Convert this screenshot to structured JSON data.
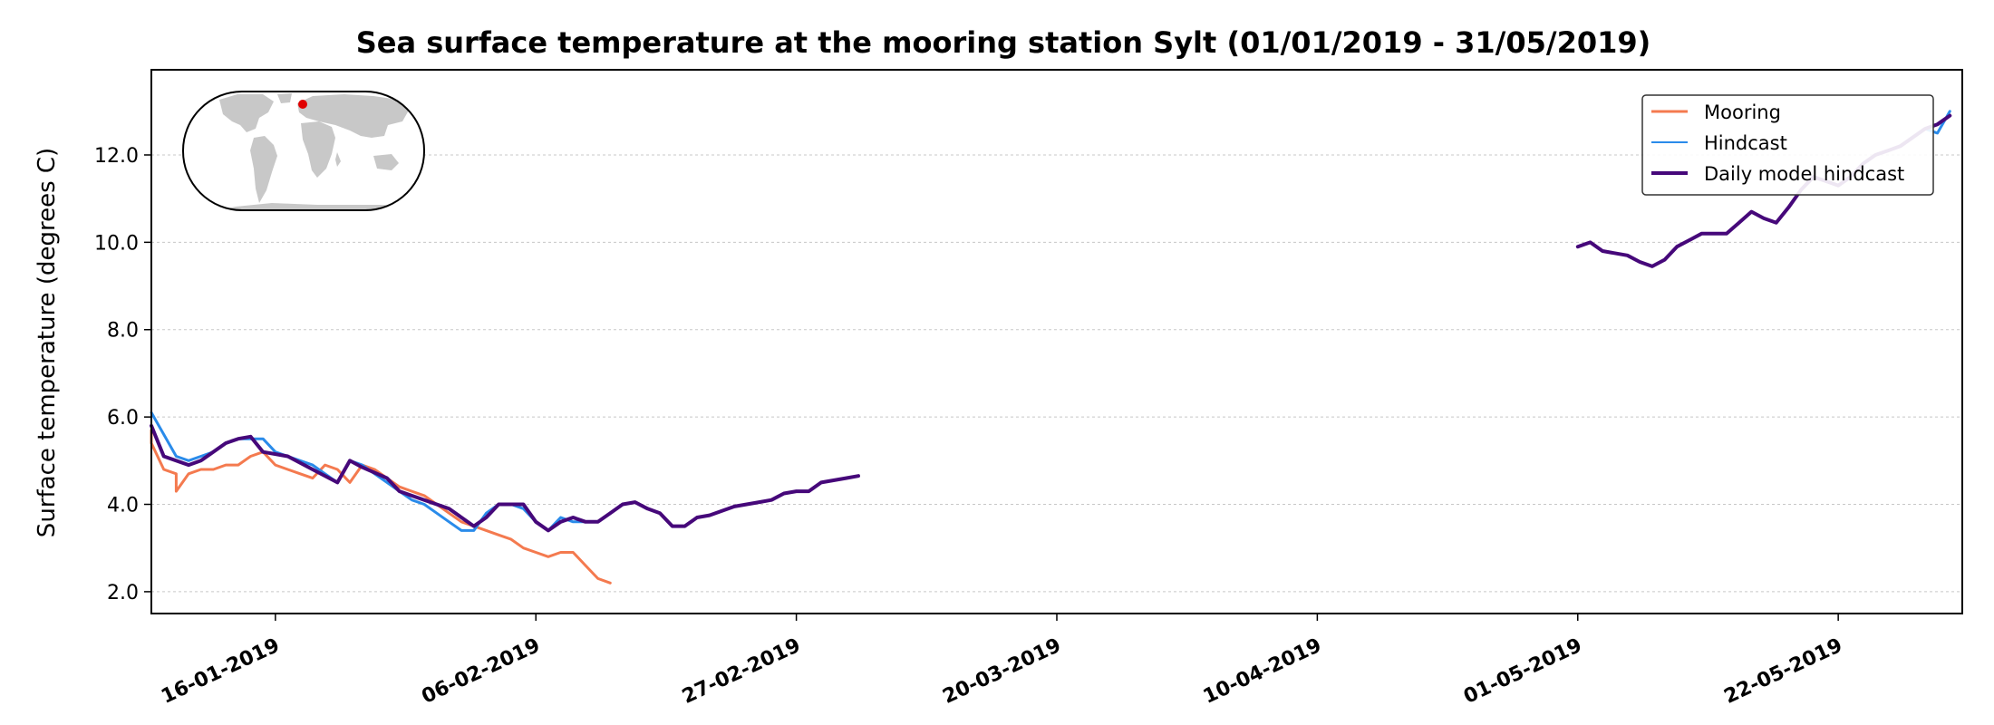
{
  "chart_data": {
    "type": "line",
    "title": "Sea surface temperature at the mooring station Sylt (01/01/2019 - 31/05/2019)",
    "xlabel": "",
    "ylabel": "Surface temperature (degrees C)",
    "xlim": [
      "2019-01-06",
      "2019-06-01"
    ],
    "ylim": [
      1.5,
      13.95
    ],
    "y_ticks": [
      2.0,
      4.0,
      6.0,
      8.0,
      10.0,
      12.0
    ],
    "y_tick_labels": [
      "2.0",
      "4.0",
      "6.0",
      "8.0",
      "10.0",
      "12.0"
    ],
    "x_ticks": [
      "2019-01-16",
      "2019-02-06",
      "2019-02-27",
      "2019-03-20",
      "2019-04-10",
      "2019-05-01",
      "2019-05-22"
    ],
    "x_tick_labels": [
      "16-01-2019",
      "06-02-2019",
      "27-02-2019",
      "20-03-2019",
      "10-04-2019",
      "01-05-2019",
      "22-05-2019"
    ],
    "grid": "horizontal",
    "legend_position": "top-right",
    "inset": {
      "type": "world-map",
      "marker_color": "#e00000"
    },
    "series": [
      {
        "name": "Mooring",
        "color": "#f47a4f",
        "width": 3,
        "segments": [
          [
            [
              "2019-01-06",
              5.7
            ],
            [
              "2019-01-06",
              5.4
            ],
            [
              "2019-01-07",
              4.8
            ],
            [
              "2019-01-08",
              4.7
            ],
            [
              "2019-01-08",
              4.3
            ],
            [
              "2019-01-09",
              4.7
            ],
            [
              "2019-01-10",
              4.8
            ],
            [
              "2019-01-11",
              4.8
            ],
            [
              "2019-01-12",
              4.9
            ],
            [
              "2019-01-13",
              4.9
            ],
            [
              "2019-01-14",
              5.1
            ],
            [
              "2019-01-15",
              5.2
            ],
            [
              "2019-01-16",
              4.9
            ],
            [
              "2019-01-17",
              4.8
            ],
            [
              "2019-01-18",
              4.7
            ],
            [
              "2019-01-19",
              4.6
            ],
            [
              "2019-01-20",
              4.9
            ],
            [
              "2019-01-21",
              4.8
            ],
            [
              "2019-01-22",
              4.5
            ],
            [
              "2019-01-23",
              4.9
            ],
            [
              "2019-01-24",
              4.8
            ],
            [
              "2019-01-25",
              4.6
            ],
            [
              "2019-01-26",
              4.4
            ],
            [
              "2019-01-27",
              4.3
            ],
            [
              "2019-01-28",
              4.2
            ],
            [
              "2019-01-29",
              4.0
            ],
            [
              "2019-01-30",
              3.8
            ],
            [
              "2019-01-31",
              3.6
            ],
            [
              "2019-02-01",
              3.5
            ],
            [
              "2019-02-02",
              3.4
            ],
            [
              "2019-02-03",
              3.3
            ],
            [
              "2019-02-04",
              3.2
            ],
            [
              "2019-02-05",
              3.0
            ],
            [
              "2019-02-06",
              2.9
            ],
            [
              "2019-02-07",
              2.8
            ],
            [
              "2019-02-08",
              2.9
            ],
            [
              "2019-02-09",
              2.9
            ],
            [
              "2019-02-10",
              2.6
            ],
            [
              "2019-02-11",
              2.3
            ],
            [
              "2019-02-12",
              2.2
            ]
          ]
        ]
      },
      {
        "name": "Hindcast",
        "color": "#2a8bea",
        "width": 3,
        "segments": [
          [
            [
              "2019-01-06",
              6.1
            ],
            [
              "2019-01-07",
              5.6
            ],
            [
              "2019-01-08",
              5.1
            ],
            [
              "2019-01-09",
              5.0
            ],
            [
              "2019-01-10",
              5.1
            ],
            [
              "2019-01-11",
              5.2
            ],
            [
              "2019-01-12",
              5.4
            ],
            [
              "2019-01-13",
              5.5
            ],
            [
              "2019-01-14",
              5.5
            ],
            [
              "2019-01-15",
              5.5
            ],
            [
              "2019-01-16",
              5.2
            ],
            [
              "2019-01-17",
              5.1
            ],
            [
              "2019-01-18",
              5.0
            ],
            [
              "2019-01-19",
              4.9
            ],
            [
              "2019-01-20",
              4.7
            ],
            [
              "2019-01-21",
              4.5
            ],
            [
              "2019-01-22",
              5.0
            ],
            [
              "2019-01-23",
              4.9
            ],
            [
              "2019-01-24",
              4.7
            ],
            [
              "2019-01-25",
              4.5
            ],
            [
              "2019-01-26",
              4.3
            ],
            [
              "2019-01-27",
              4.1
            ],
            [
              "2019-01-28",
              4.0
            ],
            [
              "2019-01-29",
              3.8
            ],
            [
              "2019-01-30",
              3.6
            ],
            [
              "2019-01-31",
              3.4
            ],
            [
              "2019-02-01",
              3.4
            ],
            [
              "2019-02-02",
              3.8
            ],
            [
              "2019-02-03",
              4.0
            ],
            [
              "2019-02-04",
              4.0
            ],
            [
              "2019-02-05",
              3.9
            ],
            [
              "2019-02-06",
              3.6
            ],
            [
              "2019-02-07",
              3.4
            ],
            [
              "2019-02-08",
              3.7
            ],
            [
              "2019-02-09",
              3.6
            ],
            [
              "2019-02-10",
              3.6
            ]
          ],
          [
            [
              "2019-05-29",
              12.6
            ],
            [
              "2019-05-30",
              12.5
            ],
            [
              "2019-05-31",
              13.0
            ]
          ]
        ]
      },
      {
        "name": "Daily model hindcast",
        "color": "#46087a",
        "width": 4,
        "segments": [
          [
            [
              "2019-01-06",
              5.8
            ],
            [
              "2019-01-07",
              5.1
            ],
            [
              "2019-01-09",
              4.9
            ],
            [
              "2019-01-10",
              5.0
            ],
            [
              "2019-01-12",
              5.4
            ],
            [
              "2019-01-13",
              5.5
            ],
            [
              "2019-01-14",
              5.55
            ],
            [
              "2019-01-15",
              5.2
            ],
            [
              "2019-01-17",
              5.1
            ],
            [
              "2019-01-19",
              4.8
            ],
            [
              "2019-01-21",
              4.5
            ],
            [
              "2019-01-22",
              5.0
            ],
            [
              "2019-01-23",
              4.85
            ],
            [
              "2019-01-25",
              4.6
            ],
            [
              "2019-01-26",
              4.3
            ],
            [
              "2019-01-28",
              4.1
            ],
            [
              "2019-01-30",
              3.9
            ],
            [
              "2019-02-01",
              3.5
            ],
            [
              "2019-02-02",
              3.7
            ],
            [
              "2019-02-03",
              4.0
            ],
            [
              "2019-02-05",
              4.0
            ],
            [
              "2019-02-06",
              3.6
            ],
            [
              "2019-02-07",
              3.4
            ],
            [
              "2019-02-08",
              3.6
            ],
            [
              "2019-02-09",
              3.7
            ],
            [
              "2019-02-10",
              3.6
            ],
            [
              "2019-02-11",
              3.6
            ],
            [
              "2019-02-12",
              3.8
            ],
            [
              "2019-02-13",
              4.0
            ],
            [
              "2019-02-14",
              4.05
            ],
            [
              "2019-02-15",
              3.9
            ],
            [
              "2019-02-16",
              3.8
            ],
            [
              "2019-02-17",
              3.5
            ],
            [
              "2019-02-18",
              3.5
            ],
            [
              "2019-02-19",
              3.7
            ],
            [
              "2019-02-20",
              3.75
            ],
            [
              "2019-02-21",
              3.85
            ],
            [
              "2019-02-22",
              3.95
            ],
            [
              "2019-02-23",
              4.0
            ],
            [
              "2019-02-24",
              4.05
            ],
            [
              "2019-02-25",
              4.1
            ],
            [
              "2019-02-26",
              4.25
            ],
            [
              "2019-02-27",
              4.3
            ],
            [
              "2019-02-28",
              4.3
            ],
            [
              "2019-03-01",
              4.5
            ],
            [
              "2019-03-03",
              4.6
            ],
            [
              "2019-03-04",
              4.65
            ]
          ],
          [
            [
              "2019-05-01",
              9.9
            ],
            [
              "2019-05-02",
              10.0
            ],
            [
              "2019-05-03",
              9.8
            ],
            [
              "2019-05-05",
              9.7
            ],
            [
              "2019-05-06",
              9.55
            ],
            [
              "2019-05-07",
              9.45
            ],
            [
              "2019-05-08",
              9.6
            ],
            [
              "2019-05-09",
              9.9
            ],
            [
              "2019-05-10",
              10.05
            ],
            [
              "2019-05-11",
              10.2
            ],
            [
              "2019-05-13",
              10.2
            ],
            [
              "2019-05-14",
              10.45
            ],
            [
              "2019-05-15",
              10.7
            ],
            [
              "2019-05-16",
              10.55
            ],
            [
              "2019-05-17",
              10.45
            ],
            [
              "2019-05-18",
              10.8
            ],
            [
              "2019-05-19",
              11.2
            ],
            [
              "2019-05-20",
              11.5
            ],
            [
              "2019-05-21",
              11.4
            ],
            [
              "2019-05-22",
              11.3
            ],
            [
              "2019-05-23",
              11.5
            ],
            [
              "2019-05-24",
              11.8
            ],
            [
              "2019-05-25",
              12.0
            ],
            [
              "2019-05-26",
              12.1
            ],
            [
              "2019-05-27",
              12.2
            ],
            [
              "2019-05-28",
              12.4
            ],
            [
              "2019-05-29",
              12.6
            ],
            [
              "2019-05-30",
              12.7
            ],
            [
              "2019-05-31",
              12.9
            ]
          ]
        ]
      }
    ]
  }
}
